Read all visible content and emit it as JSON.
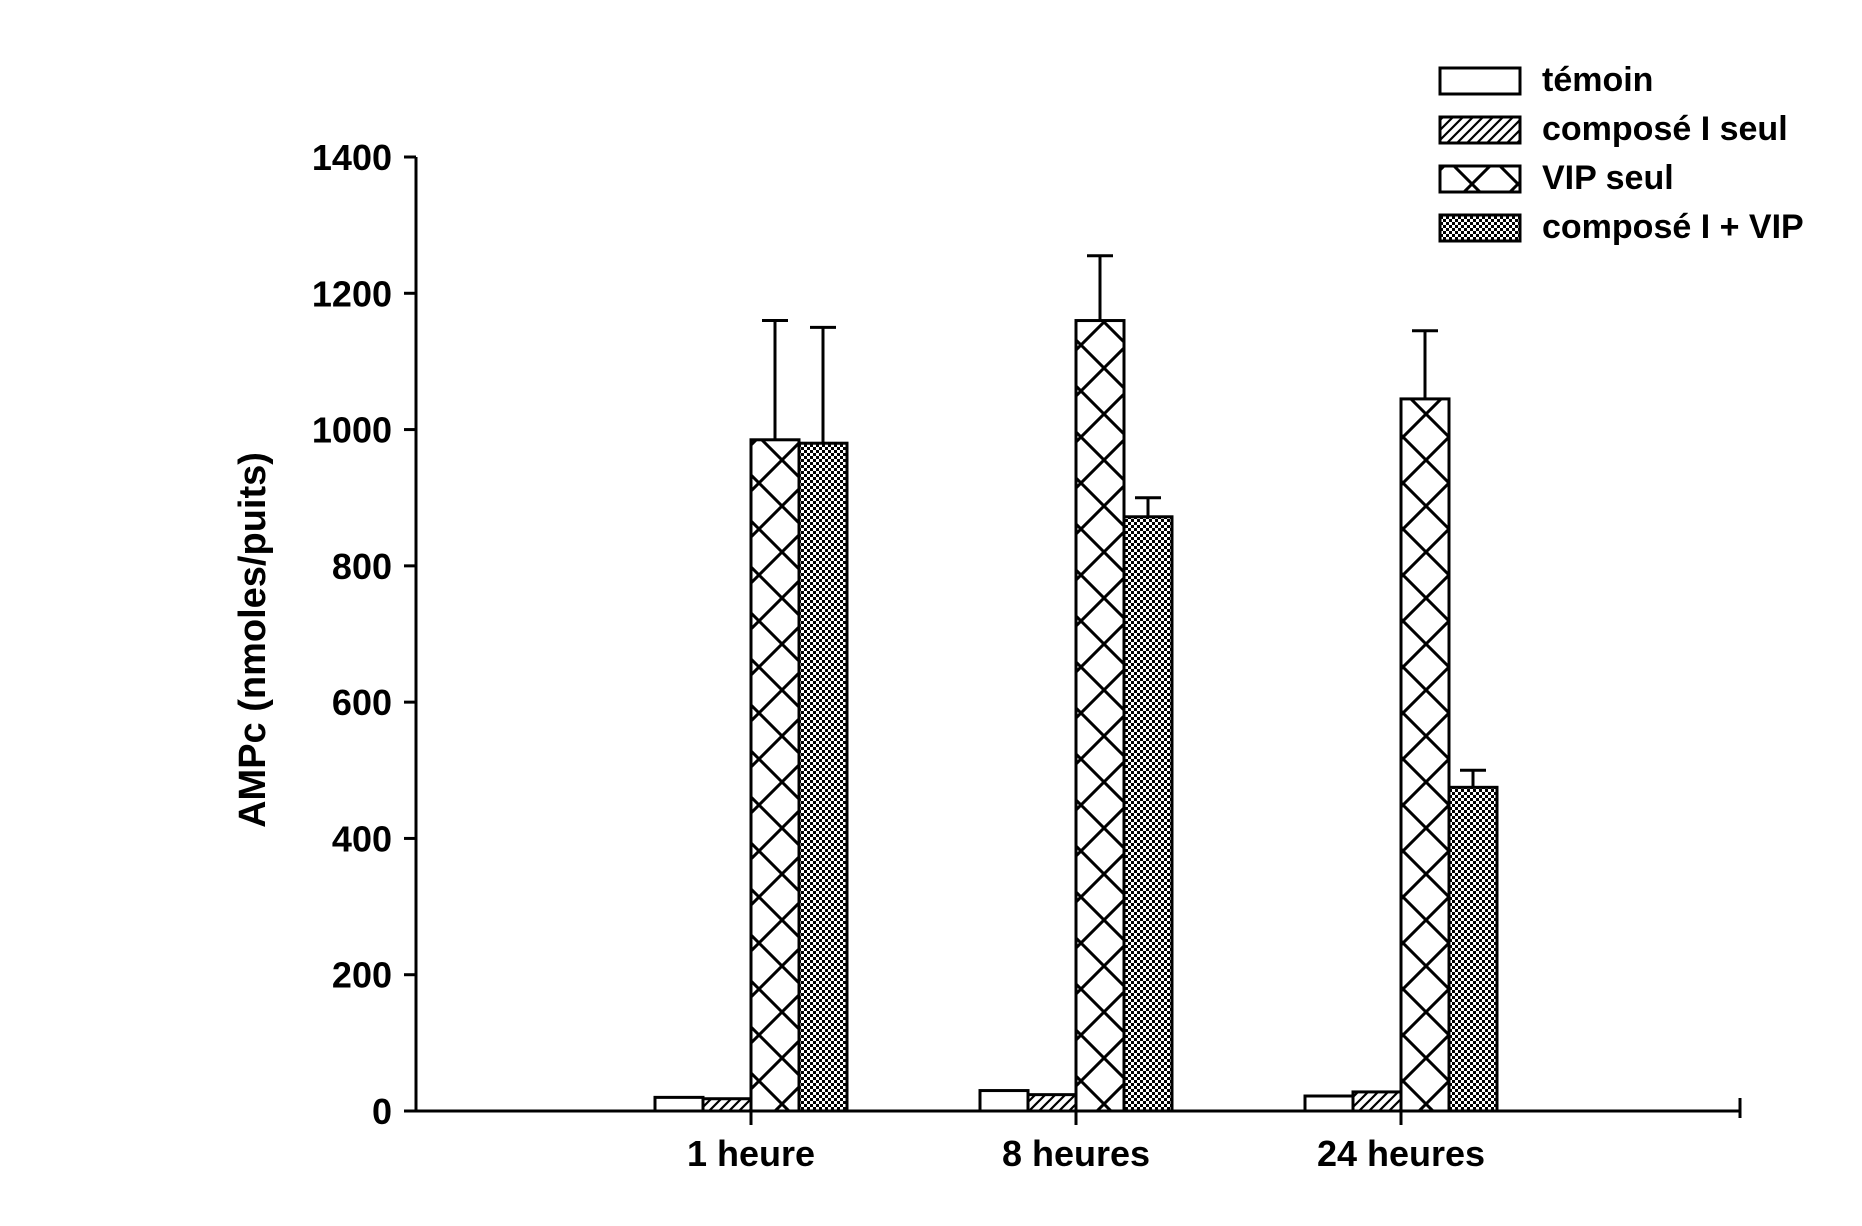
{
  "chart_data": {
    "type": "bar",
    "title": "",
    "xlabel": "",
    "ylabel": "AMPc (nmoles/puits)",
    "ylim": [
      0,
      1400
    ],
    "yticks": [
      0,
      200,
      400,
      600,
      800,
      1000,
      1200,
      1400
    ],
    "categories": [
      "1 heure",
      "8 heures",
      "24 heures"
    ],
    "legend_position": "top-right",
    "grid": false,
    "series": [
      {
        "name": "témoin",
        "pattern": "blank",
        "values": [
          20,
          30,
          22
        ],
        "errors": [
          0,
          0,
          0
        ]
      },
      {
        "name": "composé I seul",
        "pattern": "diagonal-hatch",
        "values": [
          18,
          24,
          28
        ],
        "errors": [
          0,
          0,
          0
        ]
      },
      {
        "name": "VIP seul",
        "pattern": "diamond-crosshatch",
        "values": [
          985,
          1160,
          1045
        ],
        "errors": [
          175,
          95,
          100
        ]
      },
      {
        "name": "composé I + VIP",
        "pattern": "fine-checker",
        "values": [
          980,
          872,
          475
        ],
        "errors": [
          170,
          28,
          25
        ]
      }
    ]
  }
}
